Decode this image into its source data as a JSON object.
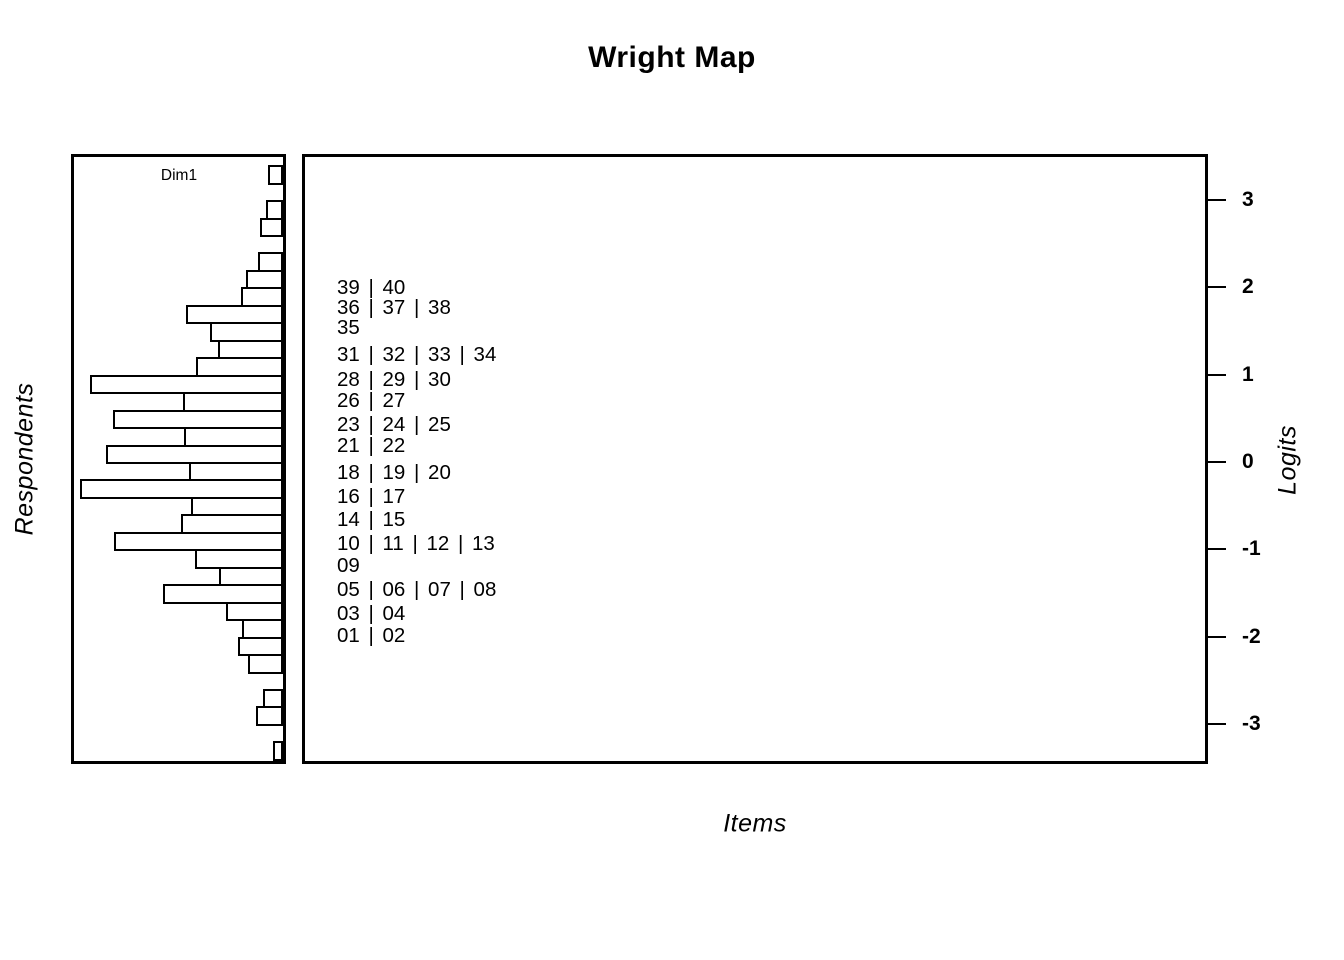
{
  "title": "Wright Map",
  "colors": {
    "foreground": "#000000",
    "background": "#ffffff"
  },
  "left_panel": {
    "heading": "Dim1",
    "axis_label": "Respondents"
  },
  "right_panel": {
    "axis_label": "Items"
  },
  "logit_axis": {
    "label": "Logits",
    "tick_labels": [
      "3",
      "2",
      "1",
      "0",
      "-1",
      "-2",
      "-3"
    ],
    "tick_values": [
      3,
      2,
      1,
      0,
      -1,
      -2,
      -3
    ],
    "range_top_logit": 3.5,
    "range_bottom_logit": -3.45
  },
  "chart_data": [
    {
      "type": "bar",
      "subtype": "histogram",
      "title": "Dim1",
      "orientation": "horizontal-bars-anchored-right",
      "ylabel": "Respondents",
      "value_axis": "Logits",
      "bin_top_logit": 3.4,
      "bin_step_logit": 0.2,
      "bin_count": 34,
      "values_fraction_of_max": [
        0.074,
        0,
        0.084,
        0.113,
        0,
        0.123,
        0.182,
        0.207,
        0.478,
        0.36,
        0.32,
        0.429,
        0.951,
        0.493,
        0.837,
        0.488,
        0.872,
        0.463,
        1.0,
        0.453,
        0.502,
        0.833,
        0.433,
        0.315,
        0.591,
        0.281,
        0.202,
        0.222,
        0.172,
        0,
        0.099,
        0.133,
        0,
        0.049
      ]
    },
    {
      "type": "scatter",
      "subtype": "item-label-map",
      "xlabel": "Items",
      "ylabel": "Logits",
      "rows": [
        {
          "label": "39 | 40",
          "logit": 2.0
        },
        {
          "label": "36 | 37 | 38",
          "logit": 1.77
        },
        {
          "label": "35",
          "logit": 1.54
        },
        {
          "label": "31 | 32 | 33 | 34",
          "logit": 1.23
        },
        {
          "label": "28 | 29 | 30",
          "logit": 0.95
        },
        {
          "label": "26 | 27",
          "logit": 0.7
        },
        {
          "label": "23 | 24 | 25",
          "logit": 0.43
        },
        {
          "label": "21 | 22",
          "logit": 0.19
        },
        {
          "label": "18 | 19 | 20",
          "logit": -0.12
        },
        {
          "label": "16 | 17",
          "logit": -0.39
        },
        {
          "label": "14 | 15",
          "logit": -0.66
        },
        {
          "label": "10 | 11 | 12 | 13",
          "logit": -0.93
        },
        {
          "label": "09",
          "logit": -1.19
        },
        {
          "label": "05 | 06 | 07 | 08",
          "logit": -1.46
        },
        {
          "label": "03 | 04",
          "logit": -1.73
        },
        {
          "label": "01 | 02",
          "logit": -1.99
        }
      ]
    }
  ]
}
